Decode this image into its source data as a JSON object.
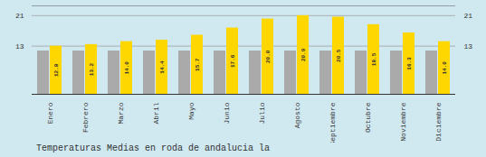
{
  "chart_data": {
    "type": "bar",
    "title": "Temperaturas Medias en roda de andalucia la",
    "categories": [
      "Enero",
      "Febrero",
      "Marzo",
      "Abril",
      "Mayo",
      "Junio",
      "Julio",
      "Agosto",
      "Septiembre",
      "Octubre",
      "Noviembre",
      "Diciembre"
    ],
    "series": [
      {
        "color": "#AAAAAA",
        "values": [
          11.5,
          11.5,
          11.5,
          11.5,
          11.5,
          11.5,
          11.5,
          11.5,
          11.5,
          11.5,
          11.5,
          11.5
        ]
      },
      {
        "color": "#FFD700",
        "values": [
          12.8,
          13.2,
          14.0,
          14.4,
          15.7,
          17.6,
          20.0,
          20.9,
          20.5,
          18.5,
          16.3,
          14.0
        ],
        "value_labels": [
          "12.8",
          "13.2",
          "14.0",
          "14.4",
          "15.7",
          "17.6",
          "20.0",
          "20.9",
          "20.5",
          "18.5",
          "16.3",
          "14.0"
        ],
        "data_labels": true
      }
    ],
    "ylim": [
      0,
      23.5
    ],
    "yticks": [
      12.8,
      20.9
    ],
    "grid": true
  }
}
